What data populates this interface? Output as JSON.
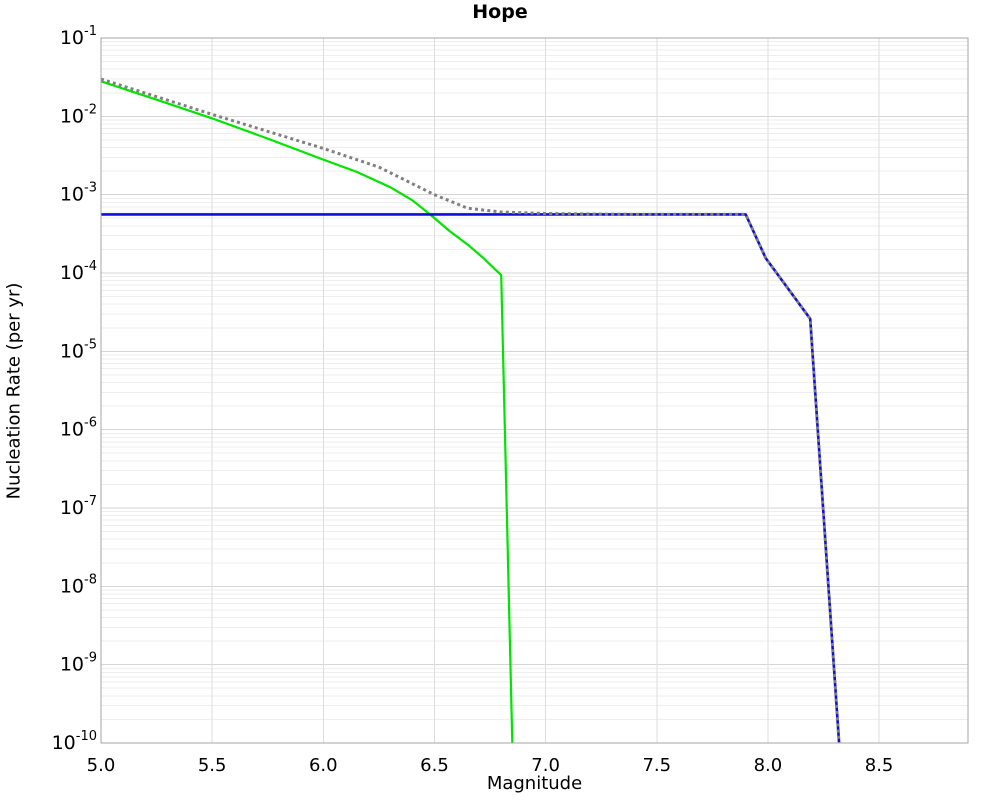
{
  "title": "Hope",
  "chart_data": {
    "type": "line",
    "title": "Hope",
    "xlabel": "Magnitude",
    "ylabel": "Nucleation Rate (per yr)",
    "x_scale": "linear",
    "y_scale": "log",
    "xlim": [
      5.0,
      8.9
    ],
    "ylim": [
      1e-10,
      0.1
    ],
    "grid": true,
    "legend": "none",
    "x_ticks": [
      {
        "label": "5.0",
        "value": 5.0
      },
      {
        "label": "5.5",
        "value": 5.5
      },
      {
        "label": "6.0",
        "value": 6.0
      },
      {
        "label": "6.5",
        "value": 6.5
      },
      {
        "label": "7.0",
        "value": 7.0
      },
      {
        "label": "7.5",
        "value": 7.5
      },
      {
        "label": "8.0",
        "value": 8.0
      },
      {
        "label": "8.5",
        "value": 8.5
      }
    ],
    "y_ticks": [
      {
        "base": "10",
        "exponent": "-1",
        "value": 0.1
      },
      {
        "base": "10",
        "exponent": "-2",
        "value": 0.01
      },
      {
        "base": "10",
        "exponent": "-3",
        "value": 0.001
      },
      {
        "base": "10",
        "exponent": "-4",
        "value": 0.0001
      },
      {
        "base": "10",
        "exponent": "-5",
        "value": 1e-05
      },
      {
        "base": "10",
        "exponent": "-6",
        "value": 1e-06
      },
      {
        "base": "10",
        "exponent": "-7",
        "value": 1e-07
      },
      {
        "base": "10",
        "exponent": "-8",
        "value": 1e-08
      },
      {
        "base": "10",
        "exponent": "-9",
        "value": 1e-09
      },
      {
        "base": "10",
        "exponent": "-10",
        "value": 1e-10
      }
    ],
    "series": [
      {
        "name": "green-solid-curve",
        "color": "#00e400",
        "style": "solid",
        "width": 2.2,
        "points": [
          [
            5.0,
            0.028
          ],
          [
            5.25,
            0.0163
          ],
          [
            5.5,
            0.0094
          ],
          [
            5.75,
            0.0052
          ],
          [
            6.0,
            0.0028
          ],
          [
            6.15,
            0.00195
          ],
          [
            6.3,
            0.00125
          ],
          [
            6.4,
            0.00085
          ],
          [
            6.48,
            0.00056
          ],
          [
            6.57,
            0.00034
          ],
          [
            6.65,
            0.00023
          ],
          [
            6.72,
            0.000155
          ],
          [
            6.77,
            0.000113
          ],
          [
            6.8,
            9.4e-05
          ],
          [
            6.85,
            1e-10
          ]
        ]
      },
      {
        "name": "blue-solid-curve",
        "color": "#0d0de0",
        "style": "solid",
        "width": 2.6,
        "points": [
          [
            5.0,
            0.00056
          ],
          [
            7.9,
            0.00056
          ],
          [
            7.99,
            0.000155
          ],
          [
            8.19,
            2.6e-05
          ],
          [
            8.32,
            1e-10
          ]
        ]
      },
      {
        "name": "gray-dotted-curve",
        "color": "#808080",
        "style": "dotted",
        "width": 3,
        "points": [
          [
            5.0,
            0.03
          ],
          [
            5.5,
            0.0106
          ],
          [
            6.0,
            0.0039
          ],
          [
            6.25,
            0.00225
          ],
          [
            6.5,
            0.001
          ],
          [
            6.65,
            0.00067
          ],
          [
            6.8,
            0.0006
          ],
          [
            7.0,
            0.000575
          ],
          [
            7.3,
            0.000562
          ],
          [
            7.9,
            0.00056
          ],
          [
            7.99,
            0.000155
          ],
          [
            8.19,
            2.6e-05
          ],
          [
            8.32,
            1e-10
          ]
        ]
      }
    ]
  }
}
